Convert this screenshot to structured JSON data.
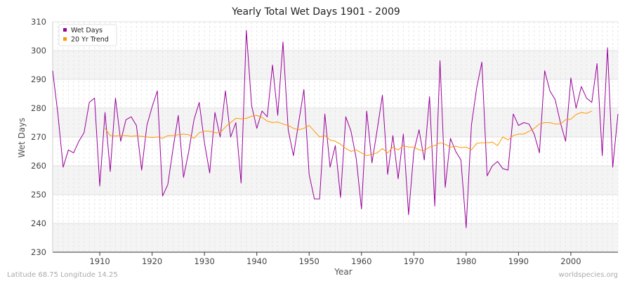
{
  "chart_data": {
    "type": "line",
    "title": "Yearly Total Wet Days 1901 - 2009",
    "xlabel": "Year",
    "ylabel": "Wet Days",
    "xlim": [
      1901,
      2009
    ],
    "ylim": [
      230,
      310
    ],
    "x_ticks": [
      1910,
      1920,
      1930,
      1940,
      1950,
      1960,
      1970,
      1980,
      1990,
      2000
    ],
    "y_ticks": [
      230,
      240,
      250,
      260,
      270,
      280,
      290,
      300,
      310
    ],
    "legend_position": "top-left",
    "series": [
      {
        "name": "Wet Days",
        "color": "#990099",
        "x_start": 1901,
        "values": [
          293,
          278,
          259.5,
          265.5,
          264.5,
          268.5,
          271.5,
          282,
          283.5,
          253,
          278.5,
          258,
          283.5,
          268.5,
          276,
          277,
          274,
          258.5,
          274,
          280.5,
          286,
          249.5,
          253.5,
          266,
          277.5,
          256,
          265,
          276,
          282,
          268,
          257.5,
          278.5,
          270,
          286,
          270,
          275,
          254,
          307,
          281,
          273,
          279,
          277,
          295,
          277.5,
          303,
          272.5,
          263.5,
          275,
          286.5,
          257,
          248.5,
          248.5,
          278,
          259.5,
          267,
          249,
          277,
          272,
          262.5,
          245,
          279,
          261,
          272.5,
          284.5,
          257,
          270.5,
          255.5,
          271,
          243,
          265,
          272.5,
          262,
          284,
          246,
          296.5,
          252.5,
          269.5,
          265,
          262,
          238.5,
          274,
          287,
          296,
          256.5,
          260,
          261.5,
          259,
          258.5,
          278,
          274,
          275,
          274.5,
          271,
          264.5,
          293,
          286,
          283,
          275,
          268.5,
          290.5,
          280,
          287.5,
          283.5,
          282,
          295.5,
          263.5,
          301,
          259.5,
          278
        ]
      },
      {
        "name": "20 Yr Trend",
        "color": "#ff9900",
        "x_start": 1911,
        "values": [
          273,
          270.5,
          270.3,
          270.5,
          270.5,
          270.2,
          270.4,
          270.2,
          270,
          269.8,
          270,
          269.5,
          270.5,
          270.5,
          270.8,
          271,
          270.8,
          269.5,
          271.5,
          272,
          272,
          271.5,
          271.5,
          273.5,
          275,
          276.5,
          276.3,
          276.5,
          277.2,
          277.5,
          276.8,
          275.5,
          275,
          275.2,
          274.5,
          274,
          273,
          272.5,
          273,
          274,
          272,
          270,
          270.5,
          269,
          268.5,
          267.5,
          266,
          265,
          265.5,
          264.5,
          263.5,
          264,
          264.5,
          266,
          264.5,
          266.5,
          265.5,
          267,
          266.5,
          266.5,
          265.5,
          265.3,
          266.5,
          267,
          268,
          267.5,
          266.5,
          266.8,
          266.3,
          266.5,
          265.5,
          267.8,
          268,
          268,
          268.2,
          267,
          270,
          269,
          270.5,
          271,
          271,
          272,
          273,
          274.5,
          275,
          275,
          274.5,
          274.5,
          276,
          276.2,
          277.8,
          278.5,
          278.2,
          279
        ]
      }
    ],
    "footer_left": "Latitude 68.75 Longitude 14.25",
    "footer_right": "worldspecies.org"
  }
}
